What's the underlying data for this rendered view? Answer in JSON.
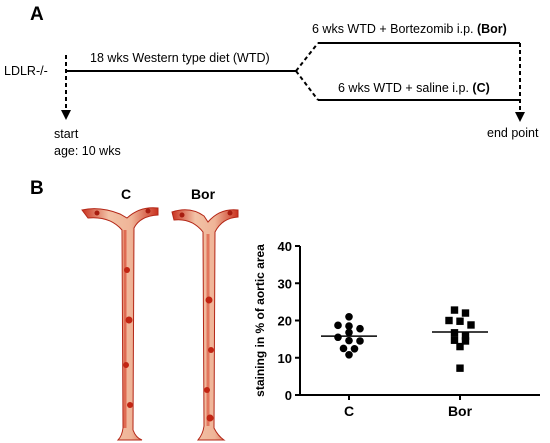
{
  "panel_a": {
    "letter": "A",
    "model": "LDLR-/-",
    "diet_label": "18 wks Western type diet (WTD)",
    "bor_arm_prefix": "6 wks WTD + Bortezomib i.p. ",
    "bor_arm_abbr": "(Bor)",
    "control_arm_prefix": "6 wks WTD + saline i.p. ",
    "control_arm_abbr": "(C)",
    "start_line1": "start",
    "start_line2": "age: 10 wks",
    "end_label": "end point"
  },
  "panel_b": {
    "letter": "B",
    "aorta_label_c": "C",
    "aorta_label_bor": "Bor"
  },
  "chart_data": {
    "type": "scatter",
    "ylabel": "staining in % of aortic area",
    "xlabel": "",
    "ylim": [
      0,
      40
    ],
    "yticks": [
      0,
      10,
      20,
      30,
      40
    ],
    "categories": [
      "C",
      "Bor"
    ],
    "series": [
      {
        "category": "C",
        "marker": "circle",
        "values": [
          18.5,
          21,
          16.8,
          17.8,
          18.7,
          14.6,
          15.5,
          14.5,
          12.5,
          12.4,
          10.8
        ],
        "mean": 15.8
      },
      {
        "category": "Bor",
        "marker": "square",
        "values": [
          22.8,
          22,
          20,
          19.8,
          18.8,
          16.7,
          15.8,
          14.7,
          14.5,
          13,
          7.2
        ],
        "mean": 16.9
      }
    ]
  }
}
